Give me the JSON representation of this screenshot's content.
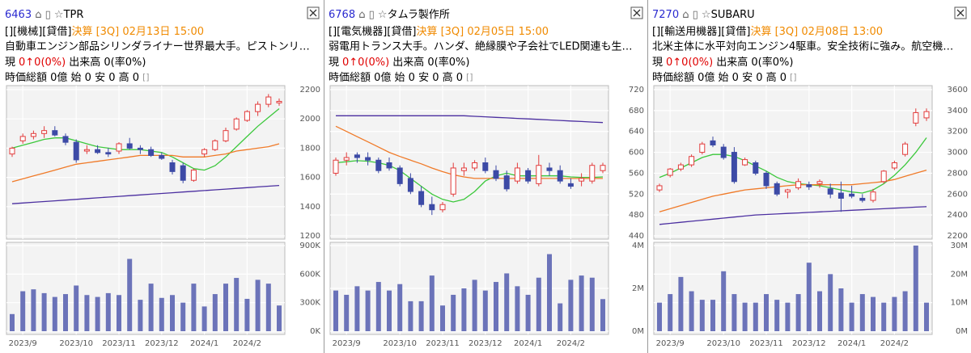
{
  "panels": [
    {
      "code": "6463",
      "name": "TPR",
      "tags": "[][機械][貸借]",
      "settlement": "決算 [3Q] 02月13日 15:00",
      "description": "自動車エンジン部品シリンダライナー世界最大手。ピストンリ…",
      "price_label": "現",
      "change": "0↑0(0%)",
      "volume_text": "出来高 0(率0%)",
      "summary": "時価総額 0億 始 0 安 0 高 0",
      "bracket": "[]"
    },
    {
      "code": "6768",
      "name": "タムラ製作所",
      "tags": "[][電気機器][貸借]",
      "settlement": "決算 [3Q] 02月05日 15:00",
      "description": "弱電用トランス大手。ハンダ、絶縁膜や子会社でLED関連も生…",
      "price_label": "現",
      "change": "0↑0(0%)",
      "volume_text": "出来高 0(率0%)",
      "summary": "時価総額 0億 始 0 安 0 高 0",
      "bracket": "[]"
    },
    {
      "code": "7270",
      "name": "SUBARU",
      "tags": "[][輸送用機器][貸借]",
      "settlement": "決算 [3Q] 02月08日 13:00",
      "description": "北米主体に水平対向エンジン4駆車。安全技術に強み。航空機…",
      "price_label": "現",
      "change": "0↑0(0%)",
      "volume_text": "出来高 0(率0%)",
      "summary": "時価総額 0億 始 0 安 0 高 0",
      "bracket": "[]"
    }
  ],
  "chart_data": [
    {
      "type": "candlestick",
      "up_color": "#e23b3b",
      "down_color": "#3c4aa6",
      "categories": [
        null,
        "2023/9",
        null,
        null,
        null,
        null,
        "2023/10",
        null,
        null,
        null,
        "2023/11",
        null,
        null,
        null,
        "2023/12",
        null,
        null,
        null,
        "2024/1",
        null,
        null,
        null,
        "2024/2",
        null,
        null,
        null
      ],
      "open": [
        1760,
        1850,
        1880,
        1900,
        1920,
        1880,
        1840,
        1780,
        1790,
        1770,
        1780,
        1830,
        1800,
        1790,
        1750,
        1700,
        1680,
        1580,
        1760,
        1790,
        1850,
        1930,
        1990,
        2050,
        2100,
        2110
      ],
      "high": [
        1810,
        1900,
        1920,
        1950,
        1950,
        1900,
        1860,
        1820,
        1820,
        1800,
        1840,
        1870,
        1820,
        1810,
        1770,
        1720,
        1700,
        1660,
        1800,
        1860,
        1940,
        2010,
        2060,
        2120,
        2170,
        2140
      ],
      "low": [
        1740,
        1830,
        1860,
        1870,
        1880,
        1820,
        1700,
        1760,
        1760,
        1740,
        1760,
        1790,
        1760,
        1740,
        1720,
        1620,
        1560,
        1570,
        1740,
        1780,
        1840,
        1920,
        1980,
        2020,
        2080,
        2090
      ],
      "close": [
        1800,
        1880,
        1900,
        1920,
        1890,
        1840,
        1720,
        1790,
        1770,
        1760,
        1830,
        1800,
        1790,
        1750,
        1730,
        1640,
        1580,
        1650,
        1790,
        1850,
        1920,
        2000,
        2050,
        2100,
        2150,
        2120
      ],
      "ma_lines": [
        {
          "color": "#3cc83c",
          "values": [
            1800,
            1820,
            1840,
            1860,
            1870,
            1870,
            1850,
            1830,
            1810,
            1800,
            1790,
            1790,
            1790,
            1780,
            1770,
            1740,
            1700,
            1660,
            1650,
            1680,
            1740,
            1810,
            1880,
            1950,
            2010,
            2070
          ]
        },
        {
          "color": "#f07a28",
          "values": [
            1570,
            1590,
            1610,
            1630,
            1650,
            1670,
            1690,
            1700,
            1710,
            1720,
            1730,
            1740,
            1750,
            1750,
            1750,
            1750,
            1740,
            1740,
            1740,
            1750,
            1760,
            1780,
            1790,
            1800,
            1810,
            1830
          ]
        },
        {
          "color": "#4b2fa0",
          "values": [
            1420,
            1425,
            1430,
            1435,
            1440,
            1445,
            1450,
            1455,
            1460,
            1465,
            1470,
            1475,
            1480,
            1485,
            1490,
            1495,
            1500,
            1505,
            1510,
            1515,
            1520,
            1525,
            1530,
            1535,
            1540,
            1545
          ]
        }
      ],
      "ylim": [
        1200,
        2200
      ],
      "yticks": [
        1200,
        1400,
        1600,
        1800,
        2000,
        2200
      ],
      "volume": {
        "color": "#6b73b9",
        "values": [
          180000,
          420000,
          440000,
          400000,
          360000,
          390000,
          480000,
          380000,
          360000,
          400000,
          380000,
          760000,
          330000,
          500000,
          350000,
          380000,
          300000,
          500000,
          260000,
          390000,
          500000,
          560000,
          340000,
          540000,
          500000,
          270000
        ],
        "ylim": [
          0,
          900000
        ],
        "yticks": [
          {
            "value": 0,
            "label": "0K"
          },
          {
            "value": 300000,
            "label": "300K"
          },
          {
            "value": 600000,
            "label": "600K"
          },
          {
            "value": 900000,
            "label": "900K"
          }
        ]
      }
    },
    {
      "type": "candlestick",
      "up_color": "#e23b3b",
      "down_color": "#3c4aa6",
      "categories": [
        null,
        "2023/9",
        null,
        null,
        null,
        null,
        "2023/10",
        null,
        null,
        null,
        "2023/11",
        null,
        null,
        null,
        "2023/12",
        null,
        null,
        null,
        "2024/1",
        null,
        null,
        null,
        "2024/2",
        null,
        null,
        null
      ],
      "open": [
        560,
        585,
        595,
        590,
        585,
        580,
        570,
        550,
        525,
        500,
        490,
        520,
        565,
        570,
        580,
        565,
        555,
        545,
        565,
        540,
        570,
        565,
        540,
        545,
        545,
        565
      ],
      "high": [
        590,
        600,
        600,
        600,
        590,
        590,
        575,
        560,
        535,
        515,
        505,
        580,
        580,
        585,
        590,
        575,
        565,
        580,
        570,
        595,
        580,
        575,
        550,
        560,
        580,
        580
      ],
      "low": [
        555,
        575,
        580,
        575,
        560,
        565,
        535,
        520,
        495,
        480,
        485,
        515,
        555,
        565,
        560,
        545,
        525,
        540,
        540,
        535,
        555,
        540,
        530,
        535,
        540,
        560
      ],
      "close": [
        585,
        590,
        590,
        585,
        565,
        570,
        540,
        525,
        500,
        490,
        500,
        570,
        570,
        580,
        565,
        550,
        530,
        570,
        545,
        575,
        565,
        545,
        535,
        550,
        575,
        575
      ],
      "ma_lines": [
        {
          "color": "#3cc83c",
          "values": [
            580,
            582,
            584,
            583,
            580,
            575,
            565,
            550,
            535,
            520,
            510,
            505,
            510,
            525,
            545,
            555,
            560,
            555,
            555,
            555,
            555,
            555,
            553,
            552,
            552,
            553
          ]
        },
        {
          "color": "#f07a28",
          "values": [
            650,
            640,
            630,
            620,
            610,
            600,
            592,
            585,
            578,
            570,
            563,
            557,
            553,
            550,
            550,
            550,
            550,
            550,
            550,
            550,
            550,
            550,
            550,
            550,
            550,
            550
          ]
        },
        {
          "color": "#4b2fa0",
          "values": [
            670,
            670,
            670,
            670,
            670,
            670,
            670,
            670,
            670,
            670,
            670,
            670,
            670,
            669,
            668,
            667,
            666,
            665,
            664,
            663,
            662,
            661,
            660,
            659,
            658,
            657
          ]
        }
      ],
      "ylim": [
        440,
        720
      ],
      "yticks": [
        440,
        480,
        520,
        560,
        600,
        640,
        680,
        720
      ],
      "volume": {
        "color": "#6b73b9",
        "values": [
          1900000,
          1700000,
          2100000,
          1900000,
          2300000,
          1900000,
          2200000,
          1400000,
          1400000,
          2600000,
          1200000,
          1700000,
          2000000,
          2400000,
          1900000,
          2300000,
          2700000,
          2100000,
          1700000,
          2500000,
          3600000,
          1300000,
          2400000,
          2600000,
          2500000,
          1500000
        ],
        "ylim": [
          0,
          4000000
        ],
        "yticks": [
          {
            "value": 0,
            "label": "0M"
          },
          {
            "value": 2000000,
            "label": "2M"
          },
          {
            "value": 4000000,
            "label": "4M"
          }
        ]
      }
    },
    {
      "type": "candlestick",
      "up_color": "#e23b3b",
      "down_color": "#3c4aa6",
      "categories": [
        null,
        "2023/9",
        null,
        null,
        null,
        null,
        "2023/10",
        null,
        null,
        null,
        "2023/11",
        null,
        null,
        null,
        "2023/12",
        null,
        null,
        null,
        "2024/1",
        null,
        null,
        null,
        "2024/2",
        null,
        null,
        null
      ],
      "open": [
        2640,
        2780,
        2840,
        2880,
        3000,
        3110,
        3050,
        3000,
        2880,
        2900,
        2800,
        2700,
        2620,
        2660,
        2690,
        2700,
        2650,
        2610,
        2600,
        2560,
        2540,
        2720,
        2850,
        2980,
        3280,
        3330
      ],
      "high": [
        2700,
        2850,
        2900,
        2980,
        3100,
        3150,
        3080,
        3050,
        2950,
        2920,
        2820,
        2720,
        2650,
        2750,
        2720,
        2740,
        2700,
        2720,
        2680,
        2600,
        2650,
        2830,
        2920,
        3100,
        3420,
        3420
      ],
      "low": [
        2620,
        2760,
        2820,
        2860,
        2980,
        3050,
        2930,
        2700,
        2870,
        2780,
        2650,
        2580,
        2560,
        2640,
        2640,
        2660,
        2560,
        2430,
        2560,
        2520,
        2520,
        2700,
        2830,
        2960,
        3250,
        3300
      ],
      "close": [
        2680,
        2840,
        2880,
        2960,
        3080,
        3070,
        2950,
        2720,
        2930,
        2800,
        2680,
        2600,
        2640,
        2720,
        2670,
        2720,
        2600,
        2560,
        2580,
        2540,
        2620,
        2820,
        2900,
        3080,
        3380,
        3390
      ],
      "ma_lines": [
        {
          "color": "#3cc83c",
          "values": [
            2760,
            2800,
            2850,
            2900,
            2950,
            2980,
            2980,
            2960,
            2920,
            2870,
            2820,
            2760,
            2720,
            2700,
            2690,
            2680,
            2660,
            2640,
            2620,
            2610,
            2640,
            2700,
            2780,
            2880,
            3000,
            3140
          ]
        },
        {
          "color": "#f07a28",
          "values": [
            2430,
            2460,
            2490,
            2520,
            2550,
            2580,
            2600,
            2620,
            2640,
            2650,
            2660,
            2670,
            2680,
            2690,
            2690,
            2690,
            2690,
            2690,
            2690,
            2700,
            2710,
            2720,
            2740,
            2770,
            2800,
            2830
          ]
        },
        {
          "color": "#4b2fa0",
          "values": [
            2310,
            2320,
            2330,
            2340,
            2350,
            2360,
            2370,
            2380,
            2390,
            2400,
            2405,
            2410,
            2415,
            2420,
            2425,
            2430,
            2435,
            2440,
            2445,
            2450,
            2455,
            2460,
            2465,
            2470,
            2475,
            2480
          ]
        }
      ],
      "ylim": [
        2200,
        3600
      ],
      "yticks": [
        2200,
        2400,
        2600,
        2800,
        3000,
        3200,
        3400,
        3600
      ],
      "volume": {
        "color": "#6b73b9",
        "values": [
          10000000,
          13000000,
          19000000,
          14000000,
          11000000,
          11000000,
          21000000,
          13000000,
          10000000,
          10000000,
          13000000,
          11000000,
          10000000,
          13000000,
          24000000,
          14000000,
          20000000,
          15000000,
          10000000,
          13000000,
          12000000,
          10000000,
          12000000,
          14000000,
          30000000,
          10000000
        ],
        "ylim": [
          0,
          30000000
        ],
        "yticks": [
          {
            "value": 0,
            "label": "0M"
          },
          {
            "value": 10000000,
            "label": "10M"
          },
          {
            "value": 20000000,
            "label": "20M"
          },
          {
            "value": 30000000,
            "label": "30M"
          }
        ]
      }
    }
  ]
}
